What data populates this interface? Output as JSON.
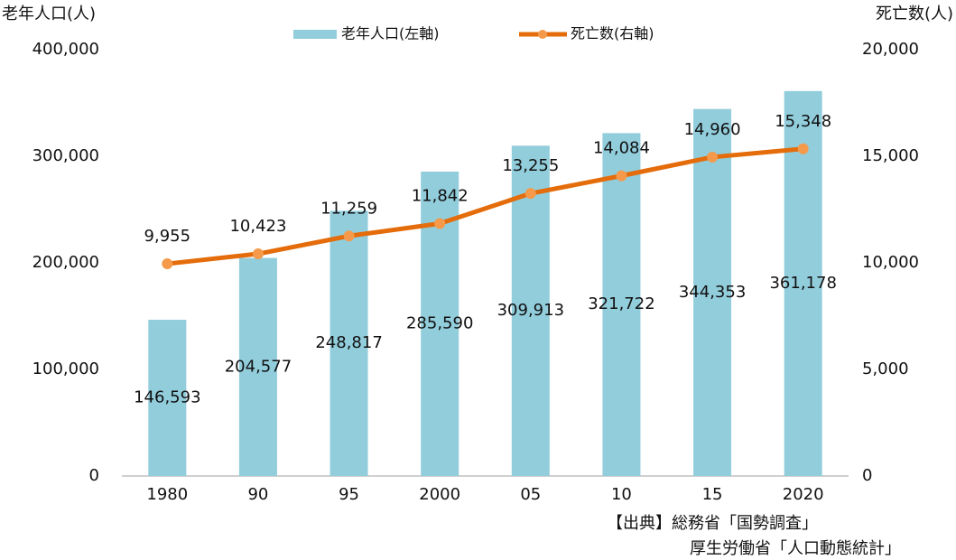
{
  "chart_data": {
    "type": "combo",
    "y_axis_title": "老年人口(人)",
    "y2_axis_title": "死亡数(人)",
    "categories": [
      "1980",
      "90",
      "95",
      "2000",
      "05",
      "10",
      "15",
      "2020"
    ],
    "series": [
      {
        "name": "老年人口(左軸)",
        "type": "bar",
        "color": "#92cddc",
        "values": [
          146593,
          204577,
          248817,
          285590,
          309913,
          321722,
          344353,
          361178
        ],
        "value_labels": [
          "146,593",
          "204,577",
          "248,817",
          "285,590",
          "309,913",
          "321,722",
          "344,353",
          "361,178"
        ]
      },
      {
        "name": "死亡数(右軸)",
        "type": "line",
        "axis": "y2",
        "color": "#e46c0a",
        "marker_color": "#f59a4a",
        "values": [
          9955,
          10423,
          11259,
          11842,
          13255,
          14084,
          14960,
          15348
        ],
        "value_labels": [
          "9,955",
          "10,423",
          "11,259",
          "11,842",
          "13,255",
          "14,084",
          "14,960",
          "15,348"
        ]
      }
    ],
    "ylim": [
      0,
      400000
    ],
    "yticks": [
      {
        "value": 0,
        "label": "0"
      },
      {
        "value": 100000,
        "label": "100,000"
      },
      {
        "value": 200000,
        "label": "200,000"
      },
      {
        "value": 300000,
        "label": "300,000"
      },
      {
        "value": 400000,
        "label": "400,000"
      }
    ],
    "y2lim": [
      0,
      20000
    ],
    "y2ticks": [
      {
        "value": 0,
        "label": "0"
      },
      {
        "value": 5000,
        "label": "5,000"
      },
      {
        "value": 10000,
        "label": "10,000"
      },
      {
        "value": 15000,
        "label": "15,000"
      },
      {
        "value": 20000,
        "label": "20,000"
      }
    ],
    "grid": false,
    "notes": [
      "【出典】総務省「国勢調査」",
      "厚生労働省「人口動態統計」"
    ]
  }
}
